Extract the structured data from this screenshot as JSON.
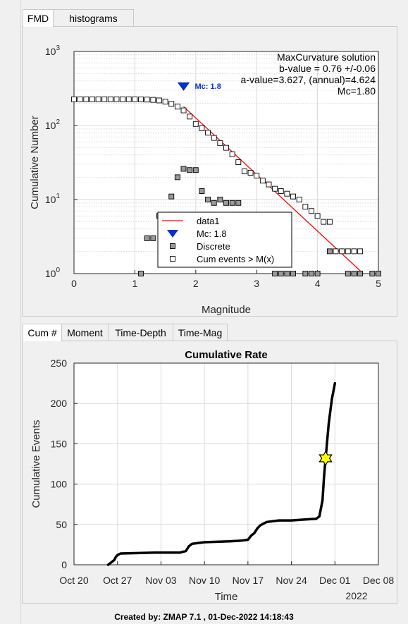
{
  "tabs_top": [
    "FMD",
    "histograms"
  ],
  "tabs_bottom": [
    "Cum #",
    "Moment",
    "Time-Depth",
    "Time-Mag"
  ],
  "footer": "Created by: ZMAP 7.1 , 01-Dec-2022 14:18:43",
  "colors": {
    "fit_line": "#ff0000",
    "mc_marker": "#0033cc",
    "star": "#ffff00",
    "curve": "#000000"
  },
  "chart_data": [
    {
      "type": "scatter",
      "yscale": "log",
      "xlim": [
        0,
        5
      ],
      "ylim": [
        1,
        1000
      ],
      "xticks": [
        "0",
        "1",
        "2",
        "3",
        "4",
        "5"
      ],
      "ytick_base": "10",
      "yticks_exp": [
        "0",
        "1",
        "2",
        "3"
      ],
      "xlabel": "Magnitude",
      "ylabel": "Cumulative Number",
      "grid": true,
      "annotation_lines": [
        "MaxCurvature solution",
        "b-value = 0.76 +/-0.06",
        "a-value=3.627, (annual)=4.624",
        "Mc=1.80"
      ],
      "mc_label": "Mc: 1.8",
      "mc_point": {
        "x": 1.8,
        "y": 340
      },
      "legend": {
        "placement": "bottom-center",
        "entries": [
          "data1",
          "Mc: 1.8",
          "Discrete",
          "Cum events > M(x)"
        ]
      },
      "series": [
        {
          "name": "data1",
          "kind": "line",
          "x": [
            1.8,
            4.75
          ],
          "y": [
            180,
            1
          ]
        },
        {
          "name": "Discrete",
          "kind": "marker",
          "x": [
            1.1,
            1.2,
            1.3,
            1.4,
            1.6,
            1.7,
            1.8,
            1.9,
            2.0,
            2.1,
            2.2,
            2.3,
            2.4,
            2.5,
            2.6,
            2.7,
            3.3,
            3.4,
            3.5,
            3.6,
            3.8,
            3.9,
            4.0,
            4.2,
            4.5,
            4.6,
            4.7,
            4.9,
            5.0
          ],
          "y": [
            1,
            3,
            3,
            6,
            11,
            20,
            26,
            25,
            25,
            13,
            10,
            9,
            10,
            9,
            9,
            9,
            1,
            1,
            1,
            1,
            1,
            1,
            1,
            2,
            1,
            1,
            1,
            1,
            1
          ]
        },
        {
          "name": "Cum events > M(x)",
          "kind": "marker",
          "x": [
            0.0,
            0.1,
            0.2,
            0.3,
            0.4,
            0.5,
            0.6,
            0.7,
            0.8,
            0.9,
            1.0,
            1.1,
            1.2,
            1.3,
            1.4,
            1.5,
            1.6,
            1.7,
            1.8,
            1.9,
            2.0,
            2.1,
            2.2,
            2.3,
            2.4,
            2.5,
            2.6,
            2.7,
            2.8,
            2.9,
            3.0,
            3.1,
            3.2,
            3.3,
            3.4,
            3.5,
            3.6,
            3.7,
            3.8,
            3.9,
            4.0,
            4.1,
            4.2,
            4.3,
            4.4,
            4.5,
            4.6,
            4.7
          ],
          "y": [
            226,
            226,
            226,
            226,
            226,
            226,
            226,
            226,
            226,
            226,
            226,
            225,
            224,
            222,
            218,
            210,
            196,
            180,
            160,
            132,
            105,
            92,
            80,
            68,
            58,
            50,
            41,
            32,
            24,
            23,
            21,
            18,
            16,
            14,
            13,
            12,
            11,
            10,
            8,
            7,
            6,
            5,
            5,
            2,
            2,
            2,
            2,
            2
          ]
        }
      ]
    },
    {
      "type": "line",
      "title": "Cumulative Rate",
      "xlabel": "Time",
      "ylabel": "Cumulative Events",
      "xlim": [
        "2022-10-20",
        "2022-12-08"
      ],
      "ylim": [
        0,
        250
      ],
      "xticks": [
        "Oct 20",
        "Oct 27",
        "Nov 03",
        "Nov 10",
        "Nov 17",
        "Nov 24",
        "Dec 01",
        "Dec 08"
      ],
      "yticks": [
        "0",
        "50",
        "100",
        "150",
        "200",
        "250"
      ],
      "year_label": "2022",
      "grid": true,
      "star_point": {
        "x": "2022-11-29 12:00",
        "y": 132
      },
      "series": [
        {
          "name": "",
          "x": [
            "2022-10-25 12:00",
            "2022-10-26 00:00",
            "2022-10-26 12:00",
            "2022-10-26 18:00",
            "2022-10-27 00:00",
            "2022-10-27 12:00",
            "2022-11-02 00:00",
            "2022-11-06 00:00",
            "2022-11-07 00:00",
            "2022-11-07 12:00",
            "2022-11-08 00:00",
            "2022-11-09 00:00",
            "2022-11-10 00:00",
            "2022-11-14 00:00",
            "2022-11-16 00:00",
            "2022-11-17 00:00",
            "2022-11-17 12:00",
            "2022-11-18 00:00",
            "2022-11-18 12:00",
            "2022-11-19 00:00",
            "2022-11-19 12:00",
            "2022-11-20 00:00",
            "2022-11-21 00:00",
            "2022-11-22 00:00",
            "2022-11-24 00:00",
            "2022-11-26 00:00",
            "2022-11-28 00:00",
            "2022-11-28 12:00",
            "2022-11-29 00:00",
            "2022-11-29 06:00",
            "2022-11-29 12:00",
            "2022-11-30 00:00",
            "2022-11-30 12:00",
            "2022-12-01 00:00"
          ],
          "y": [
            0,
            3,
            6,
            10,
            12,
            14,
            15,
            15,
            17,
            23,
            26,
            27,
            28,
            29,
            30,
            31,
            36,
            39,
            45,
            49,
            51,
            53,
            54,
            55,
            55,
            56,
            57,
            60,
            80,
            110,
            132,
            175,
            205,
            225
          ]
        }
      ]
    }
  ]
}
